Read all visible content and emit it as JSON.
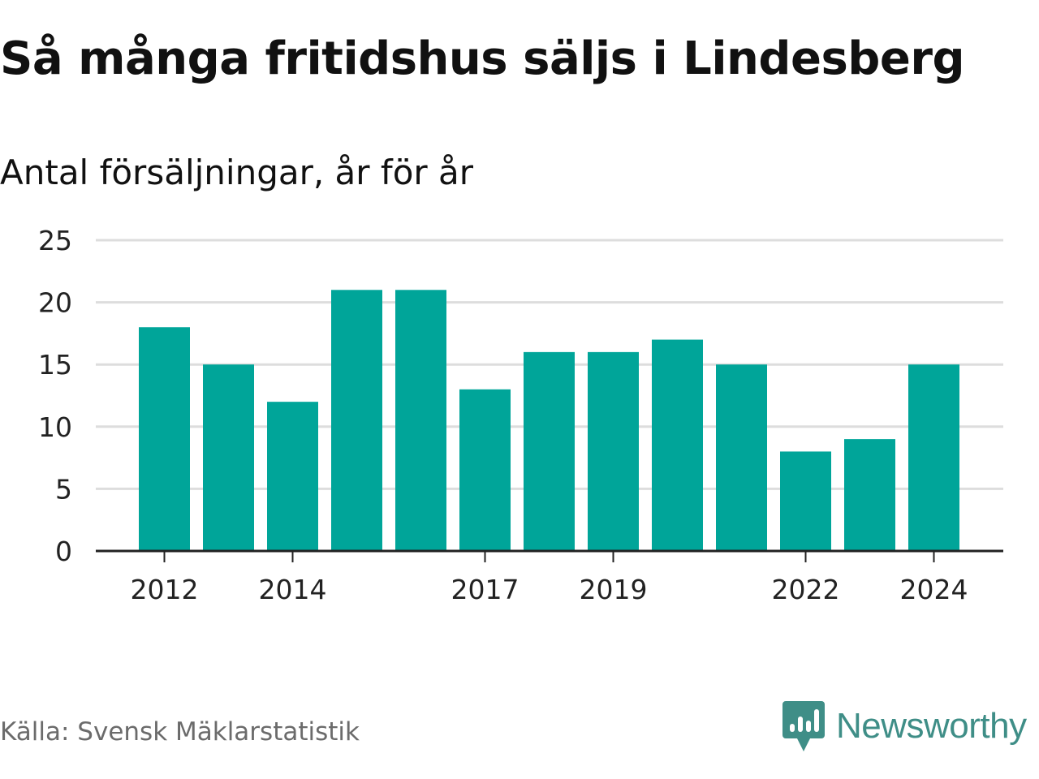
{
  "header": {
    "title": "Så många fritidshus säljs i Lindesberg",
    "subtitle": "Antal försäljningar, år för år"
  },
  "footer": {
    "source": "Källa: Svensk Mäklarstatistik",
    "brand": "Newsworthy"
  },
  "colors": {
    "bar": "#00a599",
    "grid": "#dddddd",
    "axis": "#222222",
    "brand": "#3f8e87",
    "source_text": "#6b6b6b"
  },
  "chart_data": {
    "type": "bar",
    "title": "Så många fritidshus säljs i Lindesberg",
    "subtitle": "Antal försäljningar, år för år",
    "categories": [
      "2012",
      "2013",
      "2014",
      "2015",
      "2016",
      "2017",
      "2018",
      "2019",
      "2020",
      "2021",
      "2022",
      "2023",
      "2024"
    ],
    "values": [
      18,
      15,
      12,
      21,
      21,
      13,
      16,
      16,
      17,
      15,
      8,
      9,
      15
    ],
    "x_tick_labels": [
      "2012",
      "2014",
      "2017",
      "2019",
      "2022",
      "2024"
    ],
    "y_ticks": [
      0,
      5,
      10,
      15,
      20,
      25
    ],
    "ylim": [
      0,
      25
    ],
    "grid": true,
    "legend": "none"
  }
}
